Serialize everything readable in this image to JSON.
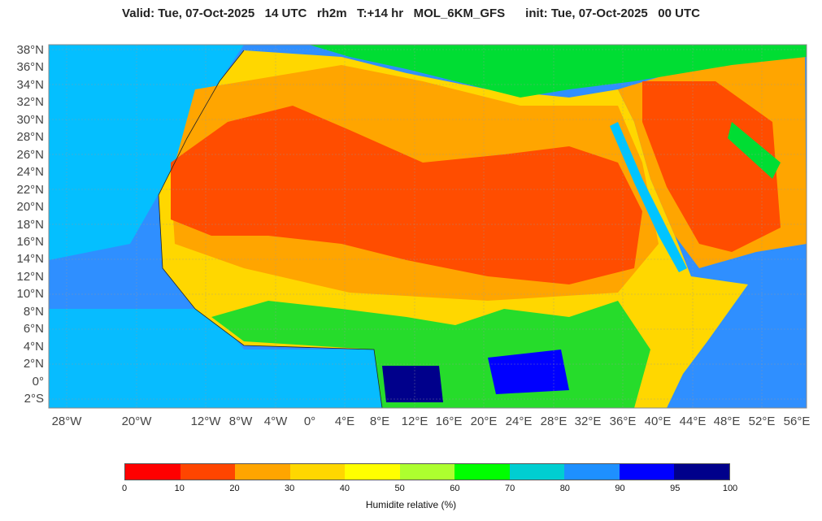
{
  "header": {
    "title": "Valid: Tue, 07-Oct-2025   14 UTC   rh2m   T:+14 hr   MOL_6KM_GFS      init: Tue, 07-Oct-2025   00 UTC"
  },
  "map": {
    "lat_labels": [
      "38°N",
      "36°N",
      "34°N",
      "32°N",
      "30°N",
      "28°N",
      "26°N",
      "24°N",
      "22°N",
      "20°N",
      "18°N",
      "16°N",
      "14°N",
      "12°N",
      "10°N",
      "8°N",
      "6°N",
      "4°N",
      "2°N",
      "0°",
      "2°S"
    ],
    "lon_labels": [
      "28°W",
      "20°W",
      "12°W",
      "8°W",
      "4°W",
      "0°",
      "4°E",
      "8°E",
      "12°E",
      "16°E",
      "20°E",
      "24°E",
      "28°E",
      "32°E",
      "36°E",
      "40°E",
      "44°E",
      "48°E",
      "52°E",
      "56°E"
    ]
  },
  "colorbar": {
    "label": "Humidite relative (%)",
    "ticks": [
      "0",
      "10",
      "20",
      "30",
      "40",
      "50",
      "60",
      "70",
      "80",
      "90",
      "95",
      "100"
    ],
    "colors": [
      "#ff0000",
      "#ff4500",
      "#ffa500",
      "#ffd700",
      "#ffff00",
      "#adff2f",
      "#00ff00",
      "#00ced1",
      "#1e90ff",
      "#0000ff",
      "#00008b"
    ]
  },
  "palette": {
    "ocean": "#2f8fff",
    "ocean_light": "#00c4ff",
    "desert": "#ff4d00",
    "arid": "#ffa500",
    "semiarid": "#ffd700",
    "moist": "#00dd33",
    "wet": "#0000ff"
  }
}
